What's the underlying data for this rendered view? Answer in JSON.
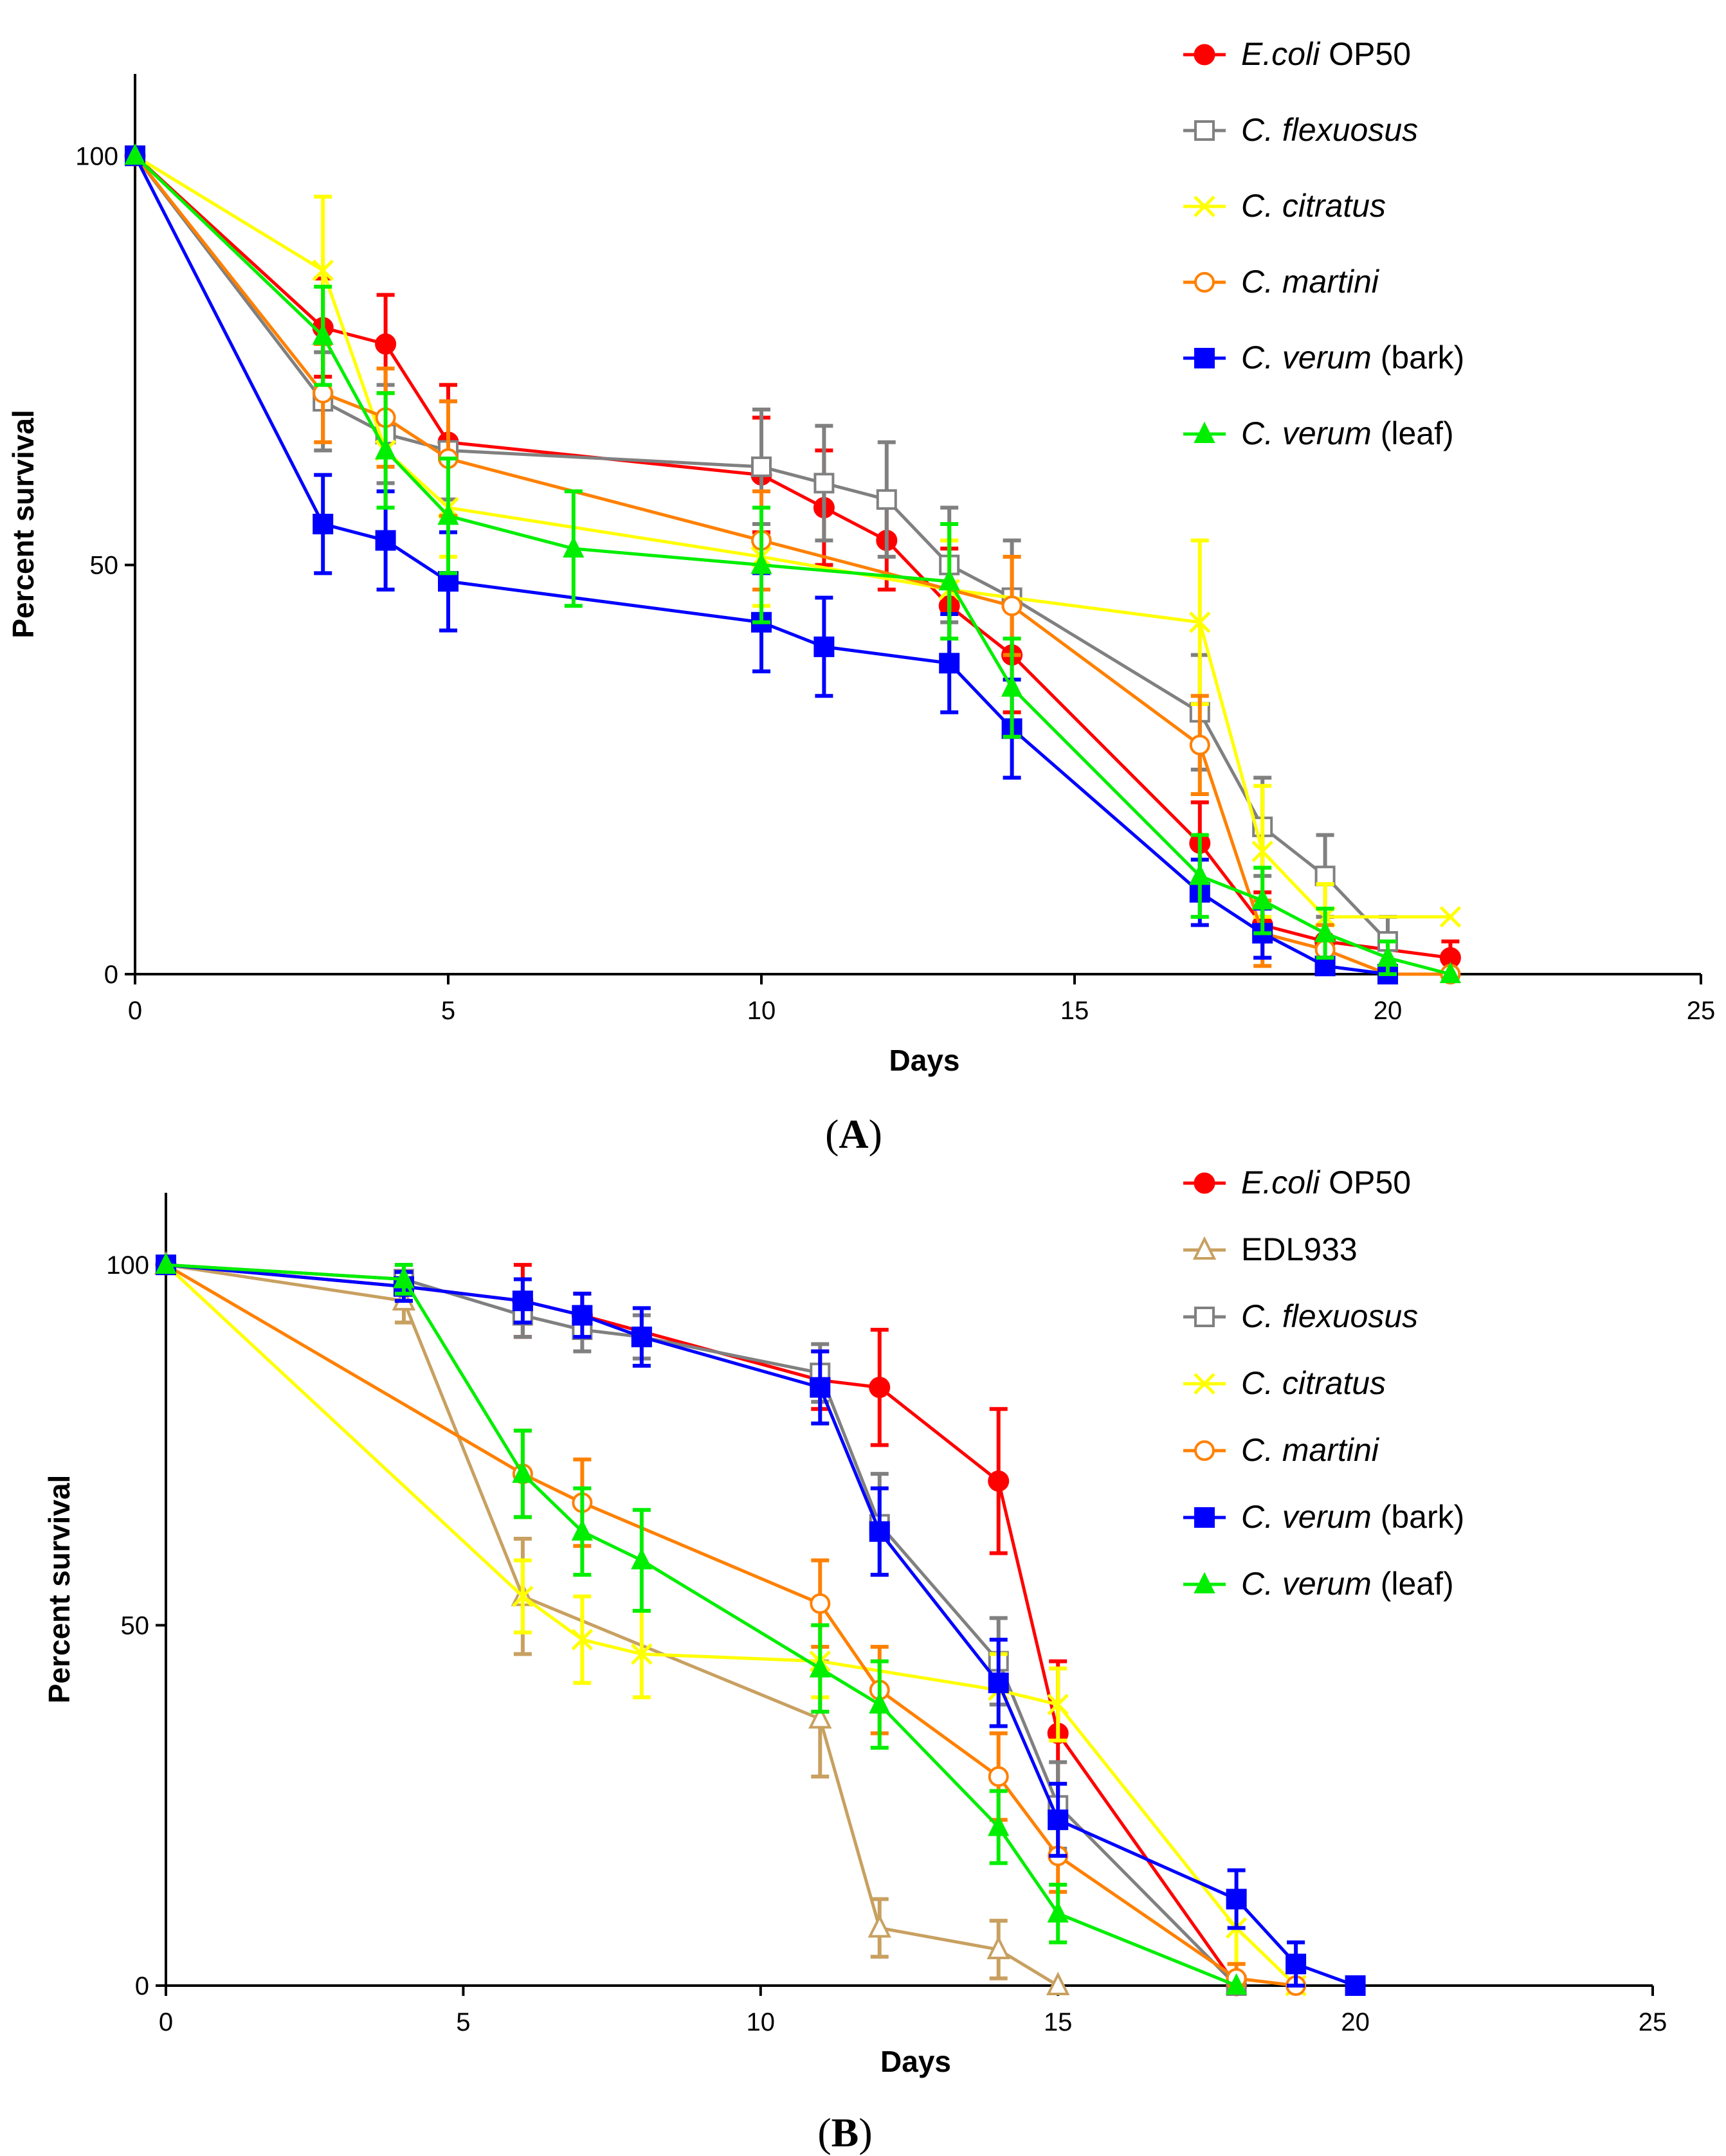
{
  "chart_data": [
    {
      "panel": "A",
      "type": "line",
      "xlabel": "Days",
      "ylabel": "Percent survival",
      "xlim": [
        0,
        25
      ],
      "ylim": [
        0,
        110
      ],
      "xticks": [
        0,
        5,
        10,
        15,
        20,
        25
      ],
      "yticks": [
        0,
        50,
        100
      ],
      "panel_label": "A",
      "legend_position": "top-right",
      "series": [
        {
          "name": "E.coli",
          "name_suffix": " OP50",
          "italic_part": "E.coli",
          "color": "#ff0000",
          "marker": "circle-filled",
          "x": [
            0,
            3,
            4,
            5,
            10,
            11,
            12,
            13,
            14,
            17,
            18,
            19,
            21
          ],
          "y": [
            100,
            79,
            77,
            65,
            61,
            57,
            53,
            45,
            39,
            16,
            6,
            4,
            2
          ],
          "err": [
            0,
            6,
            6,
            7,
            7,
            7,
            6,
            7,
            7,
            5,
            4,
            3,
            2
          ]
        },
        {
          "name": "C. flexuosus",
          "name_suffix": "",
          "italic_part": "C. flexuosus",
          "color": "#808080",
          "marker": "square-open",
          "x": [
            0,
            3,
            4,
            5,
            10,
            11,
            12,
            13,
            14,
            17,
            18,
            19,
            20
          ],
          "y": [
            100,
            70,
            66,
            64,
            62,
            60,
            58,
            50,
            46,
            32,
            18,
            12,
            4
          ],
          "err": [
            0,
            6,
            6,
            6,
            7,
            7,
            7,
            7,
            7,
            7,
            6,
            5,
            3
          ]
        },
        {
          "name": "C. citratus",
          "name_suffix": "",
          "italic_part": "C. citratus",
          "color": "#ffff00",
          "marker": "x",
          "x": [
            0,
            3,
            4,
            5,
            10,
            13,
            17,
            18,
            19,
            21
          ],
          "y": [
            100,
            86,
            64,
            57,
            51,
            47,
            43,
            15,
            7,
            7
          ],
          "err": [
            0,
            9,
            7,
            6,
            6,
            6,
            10,
            8,
            4,
            0
          ]
        },
        {
          "name": "C. martini",
          "name_suffix": "",
          "italic_part": "C. martini",
          "color": "#ff8000",
          "marker": "circle-open",
          "x": [
            0,
            3,
            4,
            5,
            10,
            14,
            17,
            18,
            19,
            20,
            21
          ],
          "y": [
            100,
            71,
            68,
            63,
            53,
            45,
            28,
            5,
            3,
            0,
            0
          ],
          "err": [
            0,
            6,
            6,
            7,
            6,
            6,
            6,
            4,
            3,
            0,
            0
          ]
        },
        {
          "name": "C. verum",
          "name_suffix": " (bark)",
          "italic_part": "C. verum",
          "color": "#0000ff",
          "marker": "square-filled",
          "x": [
            0,
            3,
            4,
            5,
            10,
            11,
            13,
            14,
            17,
            18,
            19,
            20
          ],
          "y": [
            100,
            55,
            53,
            48,
            43,
            40,
            38,
            30,
            10,
            5,
            1,
            0
          ],
          "err": [
            0,
            6,
            6,
            6,
            6,
            6,
            6,
            6,
            4,
            3,
            1,
            0
          ]
        },
        {
          "name": "C. verum",
          "name_suffix": " (leaf)",
          "italic_part": "C. verum",
          "color": "#00ee00",
          "marker": "triangle-filled",
          "x": [
            0,
            3,
            4,
            5,
            7,
            10,
            13,
            14,
            17,
            18,
            19,
            20,
            21
          ],
          "y": [
            100,
            78,
            64,
            56,
            52,
            50,
            48,
            35,
            12,
            9,
            5,
            2,
            0
          ],
          "err": [
            0,
            6,
            7,
            7,
            7,
            7,
            7,
            6,
            5,
            4,
            3,
            2,
            0
          ]
        }
      ]
    },
    {
      "panel": "B",
      "type": "line",
      "xlabel": "Days",
      "ylabel": "Percent survival",
      "xlim": [
        0,
        25
      ],
      "ylim": [
        0,
        110
      ],
      "xticks": [
        0,
        5,
        10,
        15,
        20,
        25
      ],
      "yticks": [
        0,
        50,
        100
      ],
      "panel_label": "B",
      "legend_position": "top-right",
      "series": [
        {
          "name": "E.coli",
          "name_suffix": " OP50",
          "italic_part": "E.coli",
          "color": "#ff0000",
          "marker": "circle-filled",
          "x": [
            0,
            4,
            6,
            7,
            11,
            12,
            14,
            15,
            18
          ],
          "y": [
            100,
            97,
            95,
            93,
            84,
            83,
            70,
            35,
            0
          ],
          "err": [
            0,
            2,
            5,
            3,
            4,
            8,
            10,
            10,
            0
          ]
        },
        {
          "name": "EDL933",
          "name_suffix": "",
          "italic_part": "",
          "color": "#c8a060",
          "marker": "triangle-open",
          "x": [
            0,
            4,
            6,
            11,
            12,
            14,
            15
          ],
          "y": [
            100,
            95,
            54,
            37,
            8,
            5,
            0
          ],
          "err": [
            0,
            3,
            8,
            8,
            4,
            4,
            0
          ]
        },
        {
          "name": "C. flexuosus",
          "name_suffix": "",
          "italic_part": "C. flexuosus",
          "color": "#808080",
          "marker": "square-open",
          "x": [
            0,
            4,
            6,
            7,
            8,
            11,
            12,
            14,
            15,
            18
          ],
          "y": [
            100,
            98,
            93,
            91,
            90,
            85,
            64,
            45,
            25,
            0
          ],
          "err": [
            0,
            2,
            3,
            3,
            3,
            4,
            7,
            6,
            6,
            0
          ]
        },
        {
          "name": "C. citratus",
          "name_suffix": "",
          "italic_part": "C. citratus",
          "color": "#ffff00",
          "marker": "x",
          "x": [
            0,
            6,
            7,
            8,
            11,
            14,
            15,
            18,
            19
          ],
          "y": [
            100,
            54,
            48,
            46,
            45,
            41,
            39,
            8,
            0
          ],
          "err": [
            0,
            5,
            6,
            6,
            5,
            5,
            5,
            5,
            0
          ]
        },
        {
          "name": "C. martini",
          "name_suffix": "",
          "italic_part": "C. martini",
          "color": "#ff8000",
          "marker": "circle-open",
          "x": [
            0,
            6,
            7,
            11,
            12,
            14,
            15,
            18,
            19
          ],
          "y": [
            100,
            71,
            67,
            53,
            41,
            29,
            18,
            1,
            0
          ],
          "err": [
            0,
            6,
            6,
            6,
            6,
            6,
            5,
            2,
            0
          ]
        },
        {
          "name": "C. verum",
          "name_suffix": " (bark)",
          "italic_part": "C. verum",
          "color": "#0000ff",
          "marker": "square-filled",
          "x": [
            0,
            4,
            6,
            7,
            8,
            11,
            12,
            14,
            15,
            18,
            19,
            20
          ],
          "y": [
            100,
            97,
            95,
            93,
            90,
            83,
            63,
            42,
            23,
            12,
            3,
            0
          ],
          "err": [
            0,
            2,
            3,
            3,
            4,
            5,
            6,
            6,
            5,
            4,
            3,
            0
          ]
        },
        {
          "name": "C. verum",
          "name_suffix": " (leaf)",
          "italic_part": "C. verum",
          "color": "#00ee00",
          "marker": "triangle-filled",
          "x": [
            0,
            4,
            6,
            7,
            8,
            11,
            12,
            14,
            15,
            18
          ],
          "y": [
            100,
            98,
            71,
            63,
            59,
            44,
            39,
            22,
            10,
            0
          ],
          "err": [
            0,
            2,
            6,
            6,
            7,
            6,
            6,
            5,
            4,
            0
          ]
        }
      ]
    }
  ]
}
